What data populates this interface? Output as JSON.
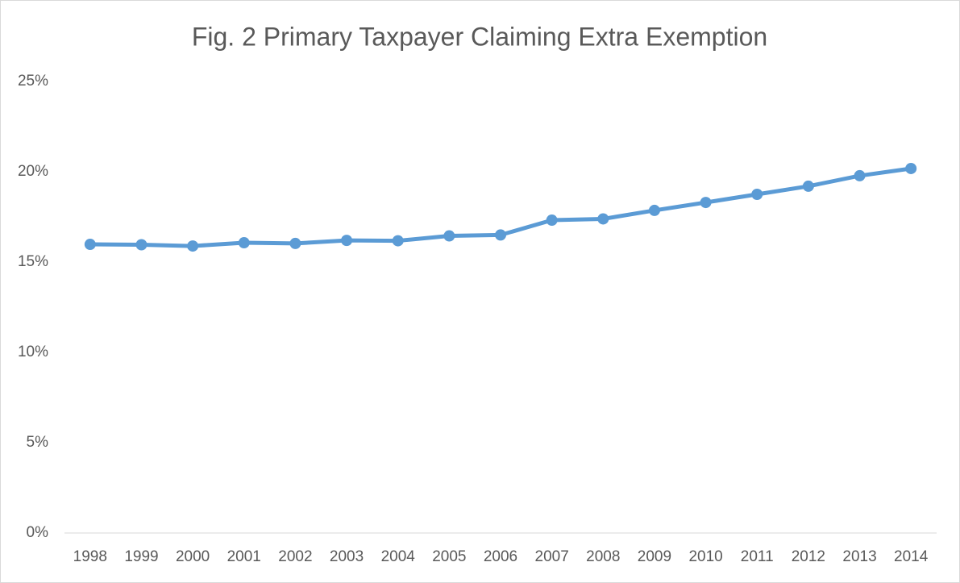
{
  "chart_data": {
    "type": "line",
    "title": "Fig. 2 Primary Taxpayer Claiming Extra Exemption",
    "categories": [
      "1998",
      "1999",
      "2000",
      "2001",
      "2002",
      "2003",
      "2004",
      "2005",
      "2006",
      "2007",
      "2008",
      "2009",
      "2010",
      "2011",
      "2012",
      "2013",
      "2014"
    ],
    "values": [
      15.98,
      15.96,
      15.89,
      16.07,
      16.03,
      16.2,
      16.18,
      16.45,
      16.5,
      17.32,
      17.39,
      17.86,
      18.3,
      18.75,
      19.2,
      19.78,
      20.18
    ],
    "color": "#5b9bd5",
    "ylim": [
      0,
      25
    ],
    "yticks": [
      {
        "value": 0,
        "label": "0%"
      },
      {
        "value": 5,
        "label": "5%"
      },
      {
        "value": 10,
        "label": "10%"
      },
      {
        "value": 15,
        "label": "15%"
      },
      {
        "value": 20,
        "label": "20%"
      },
      {
        "value": 25,
        "label": "25%"
      }
    ],
    "grid": false
  }
}
